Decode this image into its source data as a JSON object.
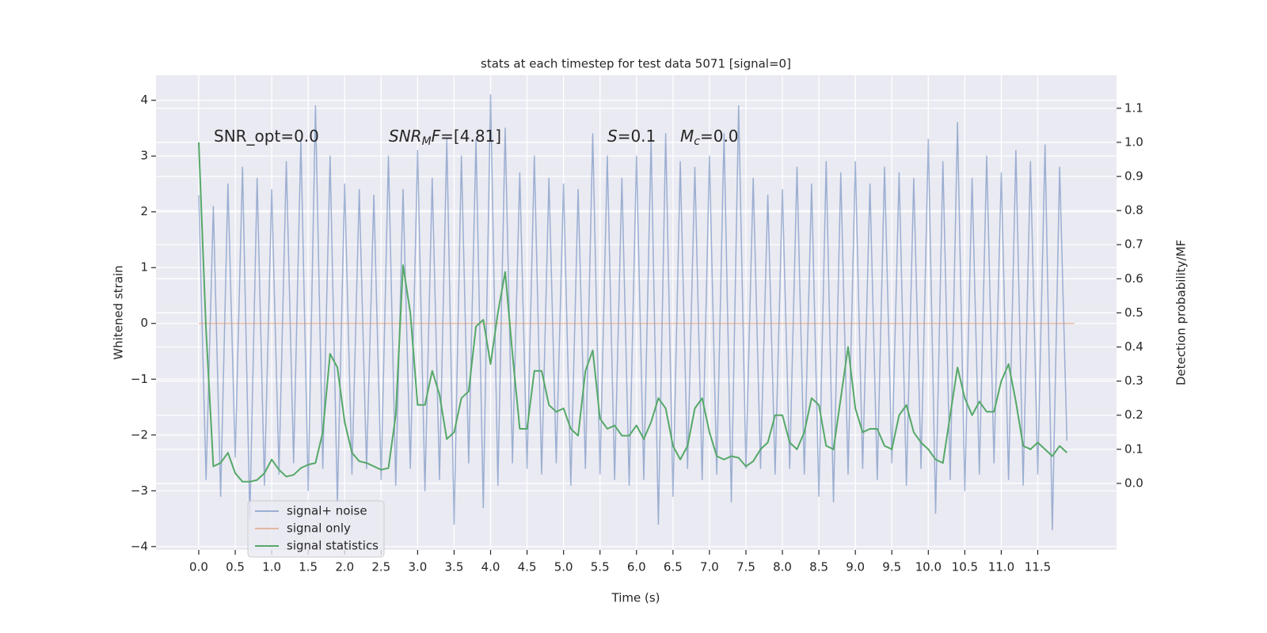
{
  "chart_data": {
    "type": "line",
    "title": "stats at each timestep for test data 5071 [signal=0]",
    "xlabel": "Time (s)",
    "ylabel": "Whitened strain",
    "y2label": "Detection probability/MF",
    "annotations": [
      [
        "SNR_opt=0.0"
      ],
      [
        "SNR",
        "M",
        "F",
        "=[4.81]"
      ],
      [
        "S",
        "=0.1"
      ],
      [
        "M",
        "c",
        "=0.0"
      ]
    ],
    "xlim": [
      -0.586,
      12.58
    ],
    "ylim": [
      -4.06,
      4.45
    ],
    "y2lim": [
      -0.195,
      1.197
    ],
    "xticks": [
      {
        "value": 0,
        "label": "0.0"
      },
      0.5,
      {
        "value": 1,
        "label": "1.0"
      },
      1.5,
      {
        "value": 2,
        "label": "2.0"
      },
      2.5,
      {
        "value": 3,
        "label": "3.0"
      },
      3.5,
      {
        "value": 4,
        "label": "4.0"
      },
      4.5,
      {
        "value": 5,
        "label": "5.0"
      },
      5.5,
      {
        "value": 6,
        "label": "6.0"
      },
      6.5,
      {
        "value": 7,
        "label": "7.0"
      },
      7.5,
      {
        "value": 8,
        "label": "8.0"
      },
      8.5,
      {
        "value": 9,
        "label": "9.0"
      },
      9.5,
      {
        "value": 10,
        "label": "10.0"
      },
      10.5,
      {
        "value": 11,
        "label": "11.0"
      },
      11.5
    ],
    "yticks": [
      {
        "value": -4,
        "label": "−4"
      },
      {
        "value": -3,
        "label": "−3"
      },
      {
        "value": -2,
        "label": "−2"
      },
      {
        "value": -1,
        "label": "−1"
      },
      0,
      1,
      2,
      3,
      4
    ],
    "y2ticks": [
      {
        "value": 0,
        "label": "0.0"
      },
      0.1,
      0.2,
      0.3,
      0.4,
      0.5,
      0.6,
      0.7,
      0.8,
      0.9,
      {
        "value": 1,
        "label": "1.0"
      },
      1.1
    ],
    "grid": true,
    "legend": "lower left",
    "series": [
      {
        "name": "signal+ noise",
        "color": "#4c72b0",
        "x": [
          0,
          0.1,
          0.2,
          0.3,
          0.4,
          0.5,
          0.6,
          0.7,
          0.8,
          0.9,
          1,
          1.1,
          1.2,
          1.3,
          1.4,
          1.5,
          1.6,
          1.7,
          1.8,
          1.9,
          2,
          2.1,
          2.2,
          2.3,
          2.4,
          2.5,
          2.6,
          2.7,
          2.8,
          2.9,
          3,
          3.1,
          3.2,
          3.3,
          3.4,
          3.5,
          3.6,
          3.7,
          3.8,
          3.9,
          4,
          4.1,
          4.2,
          4.3,
          4.4,
          4.5,
          4.6,
          4.7,
          4.8,
          4.9,
          5,
          5.1,
          5.2,
          5.3,
          5.4,
          5.5,
          5.6,
          5.7,
          5.8,
          5.9,
          6,
          6.1,
          6.2,
          6.3,
          6.4,
          6.5,
          6.6,
          6.7,
          6.8,
          6.9,
          7,
          7.1,
          7.2,
          7.3,
          7.4,
          7.5,
          7.6,
          7.7,
          7.8,
          7.9,
          8,
          8.1,
          8.2,
          8.3,
          8.4,
          8.5,
          8.6,
          8.7,
          8.8,
          8.9,
          9,
          9.1,
          9.2,
          9.3,
          9.4,
          9.5,
          9.6,
          9.7,
          9.8,
          9.9,
          10,
          10.1,
          10.2,
          10.3,
          10.4,
          10.5,
          10.6,
          10.7,
          10.8,
          10.9,
          11,
          11.1,
          11.2,
          11.3,
          11.4,
          11.5,
          11.6,
          11.7,
          11.8,
          11.9
        ],
        "values": [
          2.3,
          -2.8,
          2.1,
          -3.1,
          2.5,
          -2.4,
          2.8,
          -3.5,
          2.6,
          -2.9,
          2.4,
          -2.7,
          2.9,
          -2.5,
          3.3,
          -3.0,
          3.9,
          -2.6,
          3.0,
          -3.2,
          2.5,
          -2.7,
          2.4,
          -2.6,
          2.3,
          -2.8,
          3.0,
          -2.9,
          2.4,
          -2.6,
          3.1,
          -3.0,
          2.6,
          -2.8,
          3.3,
          -3.6,
          3.0,
          -2.5,
          3.3,
          -3.3,
          4.1,
          -2.9,
          3.5,
          -2.5,
          2.7,
          -2.6,
          3.0,
          -2.7,
          2.6,
          -2.5,
          2.5,
          -2.9,
          2.4,
          -2.6,
          3.4,
          -2.7,
          3.0,
          -2.8,
          2.6,
          -2.9,
          3.0,
          -2.8,
          3.3,
          -3.6,
          3.4,
          -3.1,
          2.9,
          -2.6,
          2.8,
          -2.8,
          3.0,
          -2.7,
          3.4,
          -3.2,
          3.9,
          -2.6,
          2.6,
          -2.6,
          2.3,
          -2.7,
          2.4,
          -2.6,
          2.8,
          -2.7,
          2.5,
          -3.1,
          2.9,
          -3.2,
          2.7,
          -2.7,
          2.9,
          -2.6,
          2.5,
          -2.8,
          2.8,
          -2.5,
          2.7,
          -2.9,
          2.6,
          -2.6,
          3.3,
          -3.4,
          2.9,
          -2.8,
          3.6,
          -3.0,
          2.6,
          -2.7,
          3.0,
          -2.5,
          2.7,
          -2.8,
          3.1,
          -2.9,
          2.9,
          -2.7,
          3.2,
          -3.7,
          2.8,
          -2.1
        ]
      },
      {
        "name": "signal only",
        "color": "#dd8452",
        "x": [
          0,
          12.0
        ],
        "values": [
          0,
          0
        ]
      },
      {
        "name": "signal statistics",
        "color": "#55a868",
        "axis": "y2",
        "x": [
          0,
          0.1,
          0.2,
          0.3,
          0.4,
          0.5,
          0.6,
          0.7,
          0.8,
          0.9,
          1,
          1.1,
          1.2,
          1.3,
          1.4,
          1.5,
          1.6,
          1.7,
          1.8,
          1.9,
          2,
          2.1,
          2.2,
          2.3,
          2.4,
          2.5,
          2.6,
          2.7,
          2.8,
          2.9,
          3,
          3.1,
          3.2,
          3.3,
          3.4,
          3.5,
          3.6,
          3.7,
          3.8,
          3.9,
          4,
          4.1,
          4.2,
          4.3,
          4.4,
          4.5,
          4.6,
          4.7,
          4.8,
          4.9,
          5,
          5.1,
          5.2,
          5.3,
          5.4,
          5.5,
          5.6,
          5.7,
          5.8,
          5.9,
          6,
          6.1,
          6.2,
          6.3,
          6.4,
          6.5,
          6.6,
          6.7,
          6.8,
          6.9,
          7,
          7.1,
          7.2,
          7.3,
          7.4,
          7.5,
          7.6,
          7.7,
          7.8,
          7.9,
          8,
          8.1,
          8.2,
          8.3,
          8.4,
          8.5,
          8.6,
          8.7,
          8.8,
          8.9,
          9,
          9.1,
          9.2,
          9.3,
          9.4,
          9.5,
          9.6,
          9.7,
          9.8,
          9.9,
          10,
          10.1,
          10.2,
          10.3,
          10.4,
          10.5,
          10.6,
          10.7,
          10.8,
          10.9,
          11,
          11.1,
          11.2,
          11.3,
          11.4,
          11.5,
          11.6,
          11.7,
          11.8,
          11.9
        ],
        "values": [
          1.0,
          0.45,
          0.05,
          0.06,
          0.09,
          0.03,
          0.005,
          0.005,
          0.01,
          0.03,
          0.07,
          0.04,
          0.02,
          0.025,
          0.045,
          0.055,
          0.06,
          0.15,
          0.38,
          0.34,
          0.18,
          0.09,
          0.065,
          0.06,
          0.05,
          0.04,
          0.045,
          0.2,
          0.64,
          0.5,
          0.23,
          0.23,
          0.33,
          0.26,
          0.13,
          0.15,
          0.25,
          0.27,
          0.46,
          0.48,
          0.35,
          0.5,
          0.62,
          0.38,
          0.16,
          0.16,
          0.33,
          0.33,
          0.23,
          0.21,
          0.22,
          0.16,
          0.14,
          0.33,
          0.39,
          0.19,
          0.16,
          0.17,
          0.14,
          0.14,
          0.17,
          0.13,
          0.18,
          0.25,
          0.22,
          0.11,
          0.07,
          0.11,
          0.22,
          0.25,
          0.15,
          0.08,
          0.07,
          0.08,
          0.075,
          0.05,
          0.065,
          0.1,
          0.12,
          0.2,
          0.2,
          0.12,
          0.1,
          0.15,
          0.25,
          0.23,
          0.11,
          0.1,
          0.25,
          0.4,
          0.22,
          0.15,
          0.16,
          0.16,
          0.11,
          0.1,
          0.2,
          0.23,
          0.15,
          0.12,
          0.1,
          0.07,
          0.06,
          0.2,
          0.34,
          0.25,
          0.2,
          0.24,
          0.21,
          0.21,
          0.3,
          0.35,
          0.24,
          0.11,
          0.1,
          0.12,
          0.1,
          0.08,
          0.11,
          0.09
        ]
      }
    ]
  }
}
